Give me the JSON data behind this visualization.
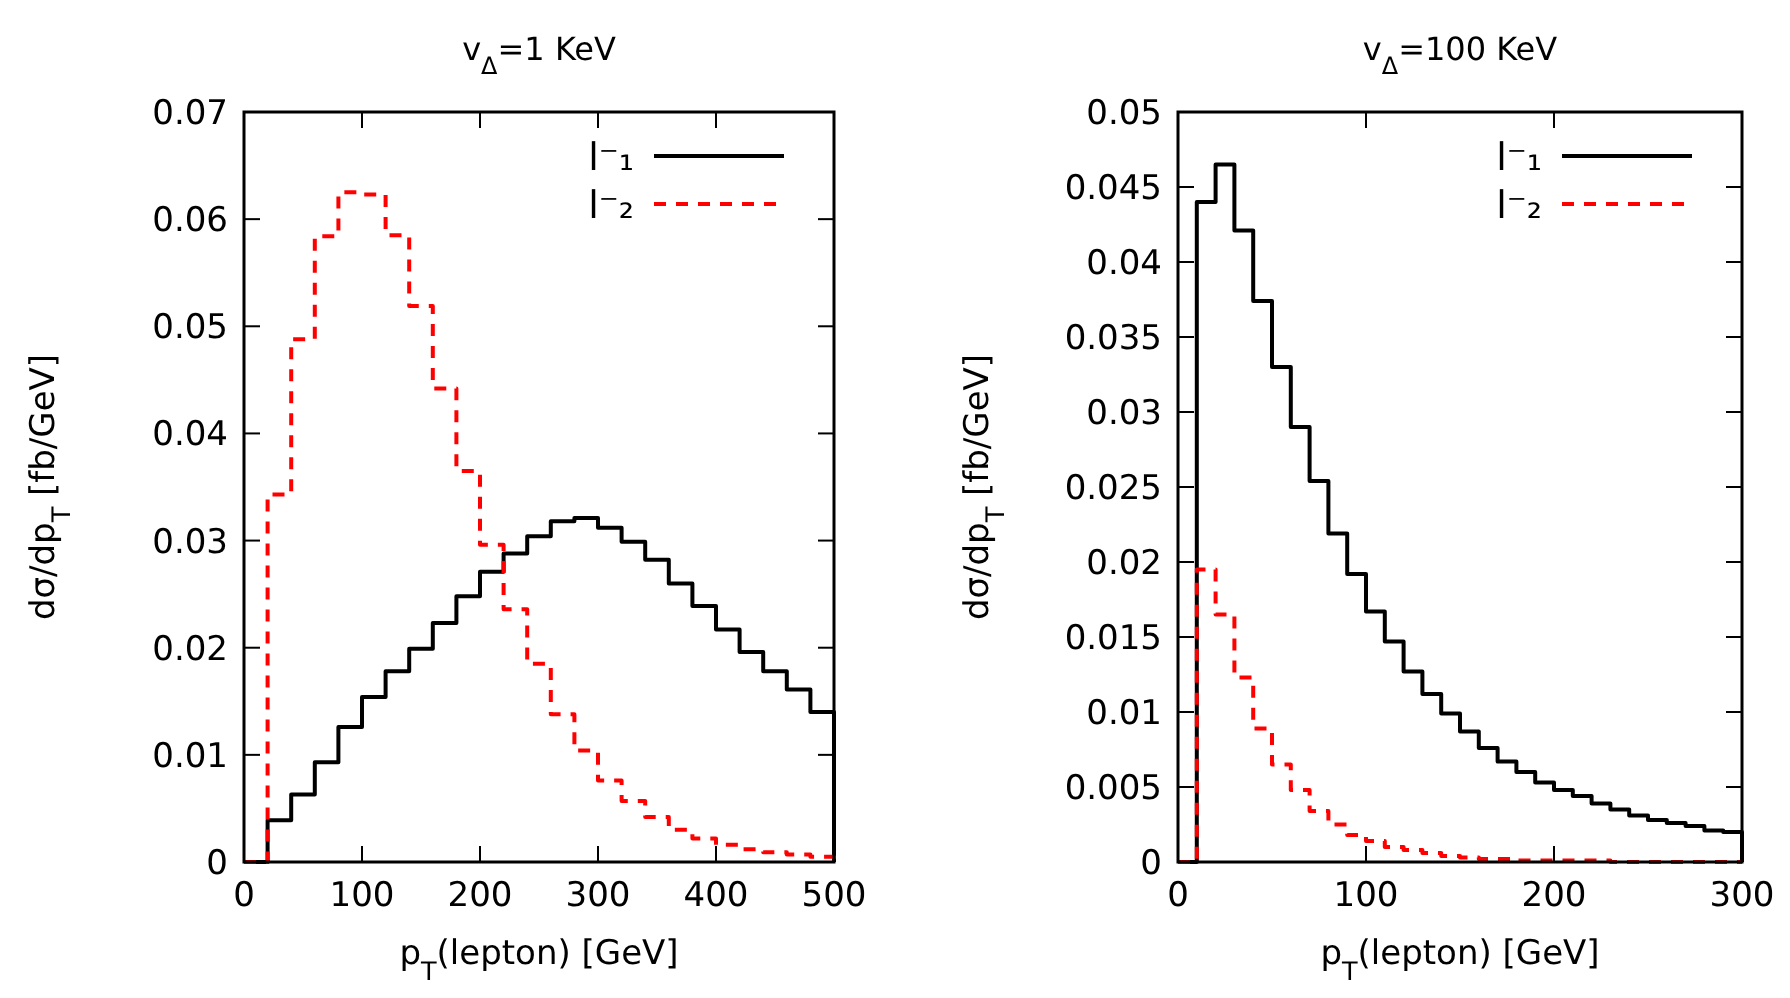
{
  "chart_data": [
    {
      "type": "histogram",
      "title": "v$_{Δ}$=1 KeV",
      "xlabel": "p$_{T}$(lepton) [GeV]",
      "ylabel": "dσ/dp$_{T}$ [fb/GeV]",
      "bins": [
        0,
        20,
        40,
        60,
        80,
        100,
        120,
        140,
        160,
        180,
        200,
        220,
        240,
        260,
        280,
        300,
        320,
        340,
        360,
        380,
        400,
        420,
        440,
        460,
        480,
        500
      ],
      "series": [
        {
          "name": "l⁻₁",
          "color": "#000000",
          "line_style": "solid",
          "values": [
            0,
            0.0039,
            0.0063,
            0.0093,
            0.0126,
            0.0154,
            0.0178,
            0.0199,
            0.0223,
            0.0248,
            0.0271,
            0.0288,
            0.0304,
            0.0318,
            0.0321,
            0.0312,
            0.0299,
            0.0282,
            0.026,
            0.0239,
            0.0217,
            0.0196,
            0.0178,
            0.0161,
            0.014
          ]
        },
        {
          "name": "l⁻₂",
          "color": "#ff0000",
          "line_style": "dashed",
          "values": [
            0,
            0.0343,
            0.0488,
            0.0584,
            0.0625,
            0.0623,
            0.0585,
            0.0519,
            0.0442,
            0.0365,
            0.0296,
            0.0236,
            0.0185,
            0.0138,
            0.0104,
            0.0076,
            0.0057,
            0.0042,
            0.003,
            0.0022,
            0.0016,
            0.0012,
            0.0009,
            0.0007,
            0.0005
          ]
        }
      ],
      "xlim": [
        0,
        500
      ],
      "xticks": [
        0,
        100,
        200,
        300,
        400,
        500
      ],
      "ylim": [
        0,
        0.07
      ],
      "yticks": [
        0,
        0.01,
        0.02,
        0.03,
        0.04,
        0.05,
        0.06,
        0.07
      ],
      "legend": "top right",
      "grid": false
    },
    {
      "type": "histogram",
      "title": "v$_{Δ}$=100 KeV",
      "xlabel": "p$_{T}$(lepton) [GeV]",
      "ylabel": "dσ/dp$_{T}$ [fb/GeV]",
      "bins": [
        0,
        10,
        20,
        30,
        40,
        50,
        60,
        70,
        80,
        90,
        100,
        110,
        120,
        130,
        140,
        150,
        160,
        170,
        180,
        190,
        200,
        210,
        220,
        230,
        240,
        250,
        260,
        270,
        280,
        290,
        300
      ],
      "series": [
        {
          "name": "l⁻₁",
          "color": "#000000",
          "line_style": "solid",
          "values": [
            0,
            0.044,
            0.0465,
            0.0421,
            0.0374,
            0.033,
            0.029,
            0.0254,
            0.0219,
            0.0192,
            0.0167,
            0.0147,
            0.0127,
            0.0112,
            0.0099,
            0.0087,
            0.0076,
            0.0067,
            0.006,
            0.0053,
            0.0048,
            0.0044,
            0.0039,
            0.0035,
            0.0031,
            0.0028,
            0.0026,
            0.0024,
            0.0021,
            0.002
          ]
        },
        {
          "name": "l⁻₂",
          "color": "#ff0000",
          "line_style": "dashed",
          "values": [
            0,
            0.0195,
            0.0165,
            0.0123,
            0.0089,
            0.0065,
            0.0048,
            0.0034,
            0.0025,
            0.0018,
            0.0014,
            0.001,
            0.0008,
            0.0006,
            0.0004,
            0.0003,
            0.0002,
            0.0002,
            0.0001,
            0.0001,
            0.0001,
            0.0001,
            0.0001,
            0,
            0,
            0,
            0,
            0,
            0,
            0
          ]
        }
      ],
      "xlim": [
        0,
        300
      ],
      "xticks": [
        0,
        100,
        200,
        300
      ],
      "ylim": [
        0,
        0.05
      ],
      "yticks": [
        0,
        0.005,
        0.01,
        0.015,
        0.02,
        0.025,
        0.03,
        0.035,
        0.04,
        0.045,
        0.05
      ],
      "legend": "top right",
      "grid": false
    }
  ]
}
